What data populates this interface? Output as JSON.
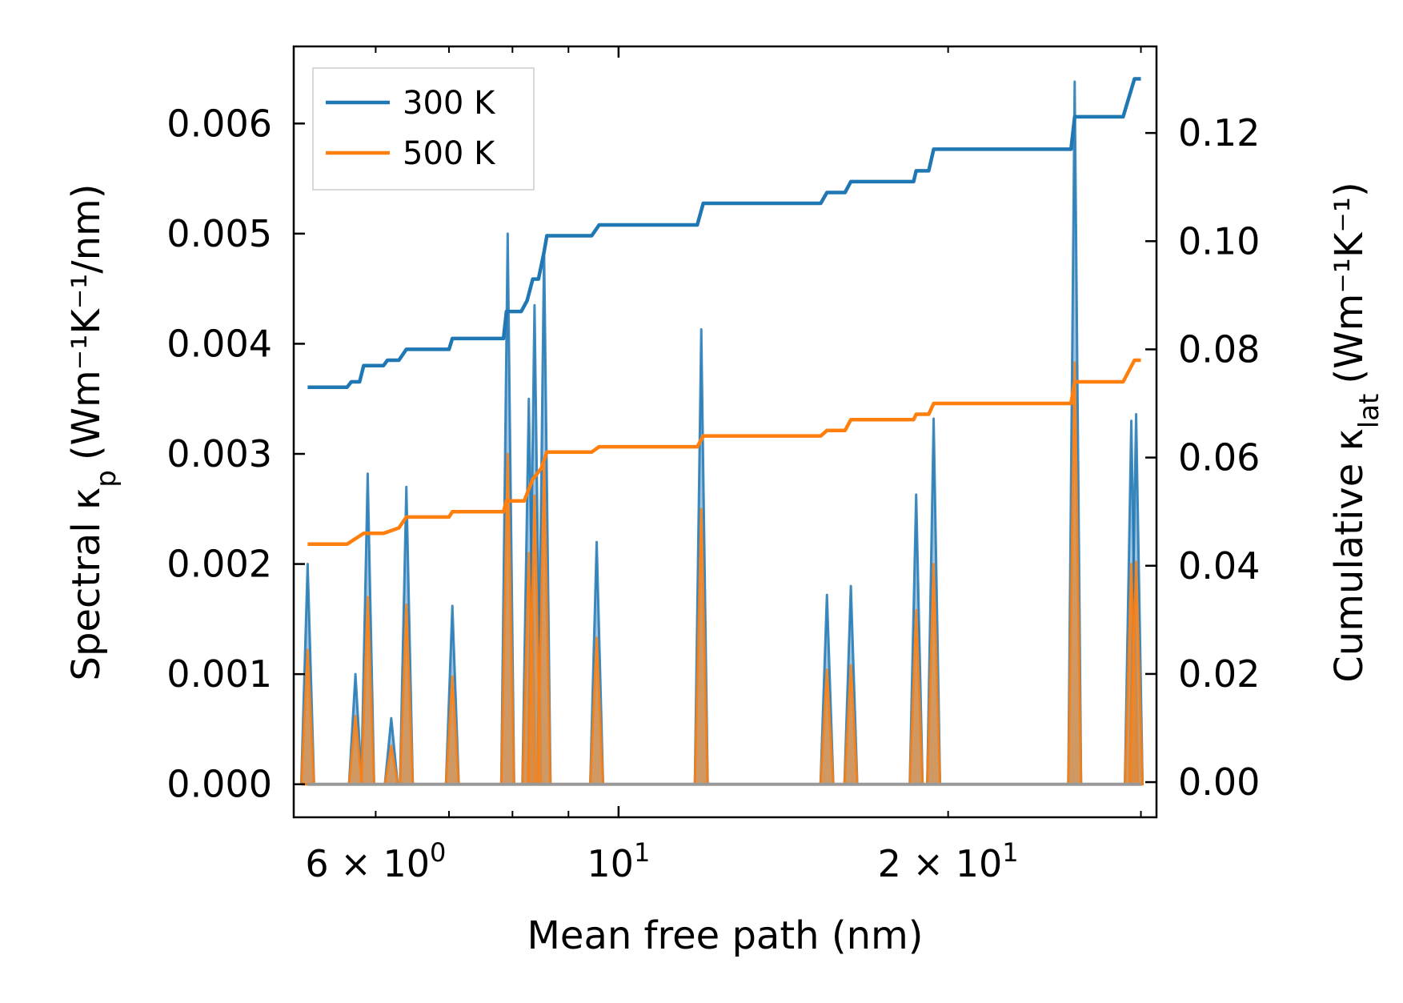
{
  "chart_data": {
    "type": "line",
    "title": "",
    "xlabel": "Mean free path (nm)",
    "xscale": "log",
    "xlim": [
      5.05,
      31.0
    ],
    "x_tick_labels": [
      {
        "value": 6,
        "label": "6 × 10",
        "exp": "0"
      },
      {
        "value": 10,
        "label": "10",
        "exp": "1"
      },
      {
        "value": 20,
        "label": "2 × 10",
        "exp": "1"
      }
    ],
    "left_axis": {
      "ylabel_prefix": "Spectral κ",
      "ylabel_sub": "p",
      "ylabel_units": "(Wm⁻¹K⁻¹/nm)",
      "ylim": [
        -0.0003,
        0.0067
      ],
      "ticks": [
        0.0,
        0.001,
        0.002,
        0.003,
        0.004,
        0.005,
        0.006
      ],
      "tick_labels": [
        "0.000",
        "0.001",
        "0.002",
        "0.003",
        "0.004",
        "0.005",
        "0.006"
      ]
    },
    "right_axis": {
      "ylabel_prefix": "Cumulative κ",
      "ylabel_sub": "lat",
      "ylabel_units": "(Wm⁻¹K⁻¹)",
      "ylim": [
        -0.0065,
        0.136
      ],
      "ticks": [
        0.0,
        0.02,
        0.04,
        0.06,
        0.08,
        0.1,
        0.12
      ],
      "tick_labels": [
        "0.00",
        "0.02",
        "0.04",
        "0.06",
        "0.08",
        "0.10",
        "0.12"
      ]
    },
    "legend": {
      "position": "top-left",
      "entries": [
        "300 K",
        "500 K"
      ]
    },
    "spectral_peaks": [
      {
        "x": 5.2,
        "k300": 0.002,
        "k500": 0.00122
      },
      {
        "x": 5.75,
        "k300": 0.001,
        "k500": 0.00062
      },
      {
        "x": 5.9,
        "k300": 0.00282,
        "k500": 0.0017
      },
      {
        "x": 6.2,
        "k300": 0.0006,
        "k500": 0.00035
      },
      {
        "x": 6.4,
        "k300": 0.0027,
        "k500": 0.00163
      },
      {
        "x": 7.05,
        "k300": 0.00162,
        "k500": 0.00098
      },
      {
        "x": 7.92,
        "k300": 0.005,
        "k500": 0.003
      },
      {
        "x": 8.28,
        "k300": 0.0035,
        "k500": 0.0021
      },
      {
        "x": 8.38,
        "k300": 0.00435,
        "k500": 0.00262
      },
      {
        "x": 8.55,
        "k300": 0.00485,
        "k500": 0.0029
      },
      {
        "x": 9.55,
        "k300": 0.0022,
        "k500": 0.00133
      },
      {
        "x": 11.9,
        "k300": 0.00413,
        "k500": 0.0025
      },
      {
        "x": 15.5,
        "k300": 0.00172,
        "k500": 0.00104
      },
      {
        "x": 16.3,
        "k300": 0.0018,
        "k500": 0.00108
      },
      {
        "x": 18.7,
        "k300": 0.00263,
        "k500": 0.00158
      },
      {
        "x": 19.4,
        "k300": 0.00332,
        "k500": 0.002
      },
      {
        "x": 26.1,
        "k300": 0.00638,
        "k500": 0.00383
      },
      {
        "x": 29.4,
        "k300": 0.0033,
        "k500": 0.002
      },
      {
        "x": 29.7,
        "k300": 0.00336,
        "k500": 0.00202
      }
    ],
    "series": [
      {
        "name": "300 K",
        "color": "#1f77b4",
        "axis": "right",
        "points": [
          [
            5.2,
            0.073
          ],
          [
            5.65,
            0.073
          ],
          [
            5.7,
            0.074
          ],
          [
            5.8,
            0.074
          ],
          [
            5.85,
            0.077
          ],
          [
            6.1,
            0.077
          ],
          [
            6.15,
            0.078
          ],
          [
            6.3,
            0.078
          ],
          [
            6.4,
            0.08
          ],
          [
            7.0,
            0.08
          ],
          [
            7.05,
            0.082
          ],
          [
            7.85,
            0.082
          ],
          [
            7.9,
            0.087
          ],
          [
            8.15,
            0.087
          ],
          [
            8.25,
            0.089
          ],
          [
            8.35,
            0.093
          ],
          [
            8.45,
            0.093
          ],
          [
            8.55,
            0.098
          ],
          [
            8.6,
            0.101
          ],
          [
            9.45,
            0.101
          ],
          [
            9.6,
            0.103
          ],
          [
            11.8,
            0.103
          ],
          [
            11.95,
            0.107
          ],
          [
            15.3,
            0.107
          ],
          [
            15.5,
            0.109
          ],
          [
            16.1,
            0.109
          ],
          [
            16.3,
            0.111
          ],
          [
            18.6,
            0.111
          ],
          [
            18.7,
            0.113
          ],
          [
            19.2,
            0.113
          ],
          [
            19.4,
            0.117
          ],
          [
            25.9,
            0.117
          ],
          [
            26.1,
            0.123
          ],
          [
            28.9,
            0.123
          ],
          [
            29.6,
            0.13
          ],
          [
            30.0,
            0.13
          ]
        ]
      },
      {
        "name": "500 K",
        "color": "#ff7f0e",
        "axis": "right",
        "points": [
          [
            5.2,
            0.044
          ],
          [
            5.65,
            0.044
          ],
          [
            5.85,
            0.046
          ],
          [
            6.1,
            0.046
          ],
          [
            6.3,
            0.047
          ],
          [
            6.4,
            0.049
          ],
          [
            7.0,
            0.049
          ],
          [
            7.05,
            0.05
          ],
          [
            7.85,
            0.05
          ],
          [
            7.9,
            0.052
          ],
          [
            8.2,
            0.052
          ],
          [
            8.35,
            0.056
          ],
          [
            8.5,
            0.058
          ],
          [
            8.6,
            0.061
          ],
          [
            9.45,
            0.061
          ],
          [
            9.6,
            0.062
          ],
          [
            11.8,
            0.062
          ],
          [
            11.95,
            0.064
          ],
          [
            15.3,
            0.064
          ],
          [
            15.5,
            0.065
          ],
          [
            16.1,
            0.065
          ],
          [
            16.3,
            0.067
          ],
          [
            18.6,
            0.067
          ],
          [
            18.7,
            0.068
          ],
          [
            19.2,
            0.068
          ],
          [
            19.4,
            0.07
          ],
          [
            25.9,
            0.07
          ],
          [
            26.1,
            0.074
          ],
          [
            28.9,
            0.074
          ],
          [
            29.6,
            0.078
          ],
          [
            30.0,
            0.078
          ]
        ]
      }
    ]
  },
  "colors": {
    "c300": "#1f77b4",
    "c500": "#ff7f0e",
    "fill300": "#5f9ac9",
    "fill500": "#e08a3a",
    "baseline": "#999999"
  }
}
